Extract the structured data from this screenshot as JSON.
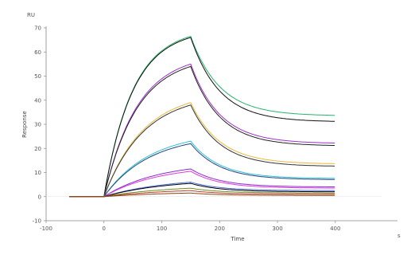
{
  "chart_data": {
    "type": "line",
    "xlabel": "Time",
    "ylabel": "Response",
    "y_unit_label": "RU",
    "x_unit_label": "s",
    "xlim": [
      -100,
      480
    ],
    "ylim": [
      -10,
      70
    ],
    "x_ticks": [
      -100,
      0,
      100,
      200,
      300,
      400
    ],
    "y_ticks": [
      -10,
      0,
      10,
      20,
      30,
      40,
      50,
      60,
      70
    ],
    "grid": false,
    "legend": "none",
    "assoc_start": 0,
    "dissoc_start": 150,
    "x_end": 400,
    "series": [
      {
        "color": "#27b46a",
        "values": [
          0,
          66.5,
          33.5
        ],
        "shape": 3.0
      },
      {
        "color": "#111111",
        "values": [
          0,
          66.0,
          31.0
        ],
        "shape": 3.0
      },
      {
        "color": "#9b30c8",
        "values": [
          0,
          55.0,
          22.0
        ],
        "shape": 2.6
      },
      {
        "color": "#222222",
        "values": [
          0,
          54.0,
          21.0
        ],
        "shape": 2.6
      },
      {
        "color": "#e8b83c",
        "values": [
          0,
          39.0,
          13.5
        ],
        "shape": 2.2
      },
      {
        "color": "#333333",
        "values": [
          0,
          38.0,
          12.5
        ],
        "shape": 2.2
      },
      {
        "color": "#30c0d0",
        "values": [
          0,
          23.0,
          7.5
        ],
        "shape": 1.9
      },
      {
        "color": "#224488",
        "values": [
          0,
          22.0,
          7.0
        ],
        "shape": 1.9
      },
      {
        "color": "#8a2bd0",
        "values": [
          0,
          11.5,
          4.0
        ],
        "shape": 1.6
      },
      {
        "color": "#dd3bd6",
        "values": [
          0,
          10.5,
          3.5
        ],
        "shape": 1.6
      },
      {
        "color": "#4a6ad8",
        "values": [
          0,
          6.0,
          2.5
        ],
        "shape": 1.4
      },
      {
        "color": "#000000",
        "values": [
          0,
          5.5,
          2.0
        ],
        "shape": 1.4
      },
      {
        "color": "#6b8e23",
        "values": [
          0,
          3.5,
          1.5
        ],
        "shape": 1.3
      },
      {
        "color": "#c0392b",
        "values": [
          0,
          2.5,
          1.0
        ],
        "shape": 1.3
      },
      {
        "color": "#8b4513",
        "values": [
          0,
          1.5,
          0.5
        ],
        "shape": 1.2
      }
    ]
  }
}
